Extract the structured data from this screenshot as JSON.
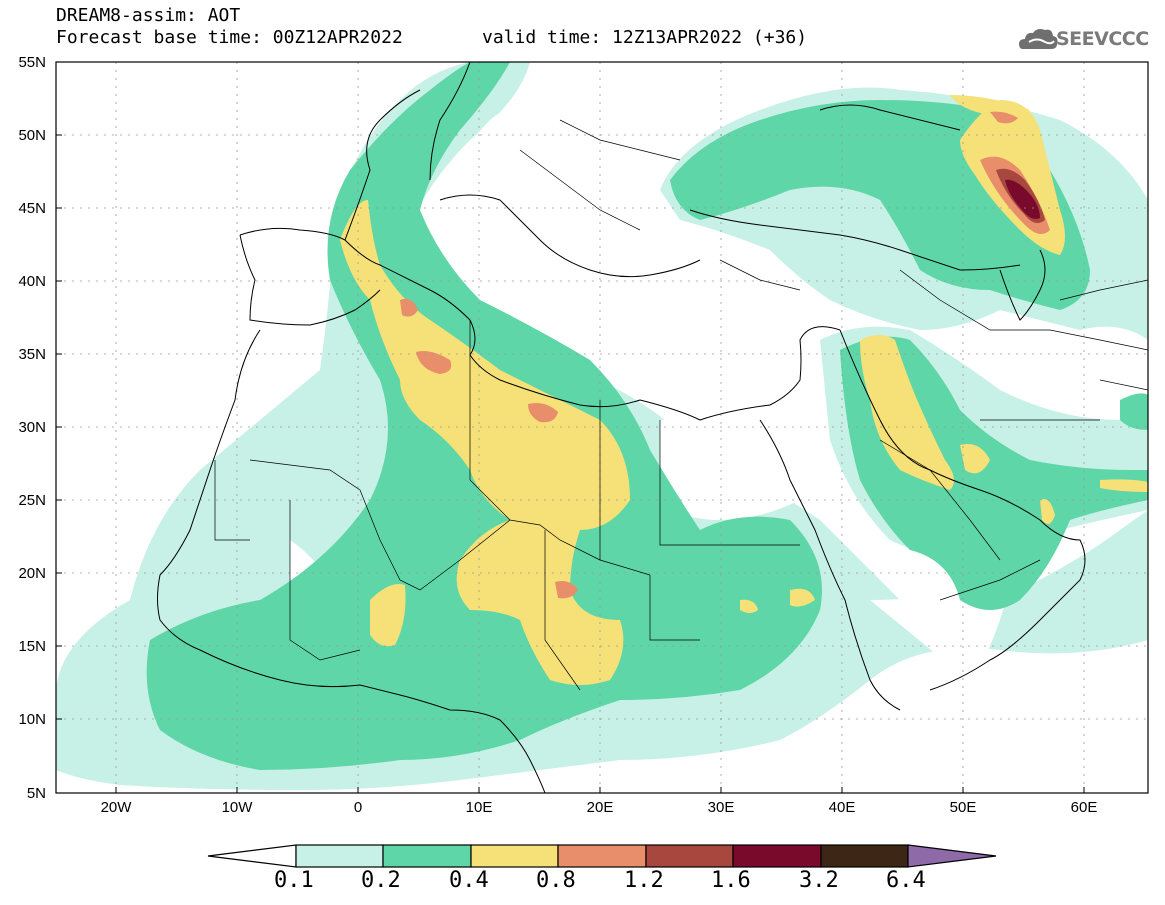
{
  "header": {
    "title": "DREAM8-assim: AOT",
    "base_time": "Forecast base time: 00Z12APR2022",
    "valid_time": "valid time: 12Z13APR2022 (+36)"
  },
  "logo": {
    "text": "SEEVCCC",
    "icon": "cloud-icon"
  },
  "map": {
    "lat_labels": [
      "55N",
      "50N",
      "45N",
      "40N",
      "35N",
      "30N",
      "25N",
      "20N",
      "15N",
      "10N",
      "5N"
    ],
    "lon_labels": [
      "20W",
      "10W",
      "0",
      "10E",
      "20E",
      "30E",
      "40E",
      "50E",
      "60E"
    ],
    "extent": {
      "lon": [
        -25,
        65
      ],
      "lat": [
        5,
        55
      ]
    }
  },
  "colorbar": {
    "labels": [
      "0.1",
      "0.2",
      "0.4",
      "0.8",
      "1.2",
      "1.6",
      "3.2",
      "6.4"
    ],
    "colors": [
      "#ffffff",
      "#c7f0e6",
      "#5fd6a7",
      "#f5e178",
      "#e88e6a",
      "#a8473d",
      "#7a0a2b",
      "#3d2616",
      "#8e6aa8"
    ]
  }
}
